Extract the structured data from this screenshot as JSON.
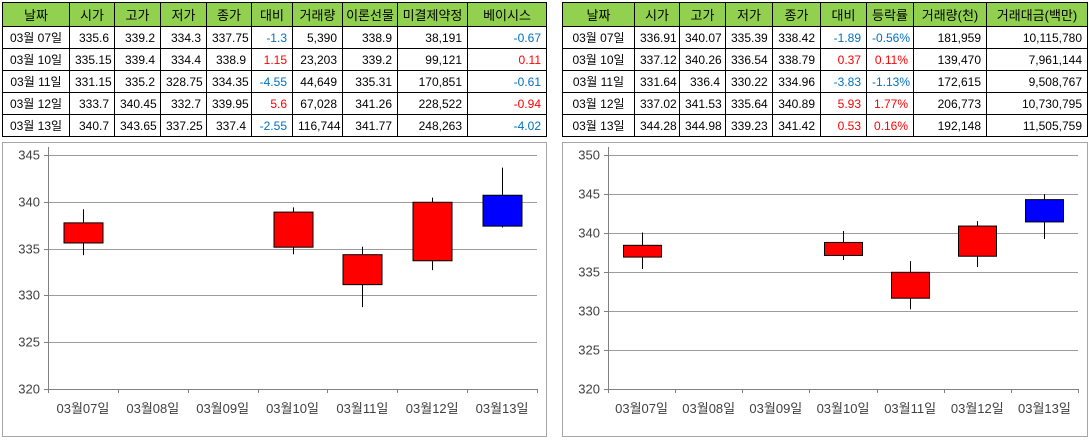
{
  "colors": {
    "header_bg": "#92D050",
    "up": "#FF0000",
    "down": "#0000FF",
    "up_text": "#FF0000",
    "down_text": "#0070C0",
    "grid": "#9C9C9C",
    "axis": "#808080",
    "chart_border": "#A6A6A6",
    "chart_label": "#404040",
    "table_border": "#000000"
  },
  "tables": [
    {
      "name": "futures-daily-table",
      "headers": [
        "날짜",
        "시가",
        "고가",
        "저가",
        "종가",
        "대비",
        "거래량",
        "이론선물",
        "미결제약정",
        "베이시스"
      ],
      "rows": [
        {
          "cells": [
            "03월 07일",
            "335.6",
            "339.2",
            "334.3",
            "337.75",
            "-1.3",
            "5,390",
            "338.9",
            "38,191",
            "-0.67"
          ],
          "colors": {
            "5": "down",
            "9": "down"
          }
        },
        {
          "cells": [
            "03월 10일",
            "335.15",
            "339.4",
            "334.4",
            "338.9",
            "1.15",
            "23,203",
            "339.2",
            "99,121",
            "0.11"
          ],
          "colors": {
            "5": "up",
            "9": "up"
          }
        },
        {
          "cells": [
            "03월 11일",
            "331.15",
            "335.2",
            "328.75",
            "334.35",
            "-4.55",
            "44,649",
            "335.31",
            "170,851",
            "-0.61"
          ],
          "colors": {
            "5": "down",
            "9": "down"
          }
        },
        {
          "cells": [
            "03월 12일",
            "333.7",
            "340.45",
            "332.7",
            "339.95",
            "5.6",
            "67,028",
            "341.26",
            "228,522",
            "-0.94"
          ],
          "colors": {
            "5": "up",
            "9": "up"
          }
        },
        {
          "cells": [
            "03월 13일",
            "340.7",
            "343.65",
            "337.25",
            "337.4",
            "-2.55",
            "116,744",
            "341.77",
            "248,263",
            "-4.02"
          ],
          "colors": {
            "5": "down",
            "9": "down"
          }
        }
      ]
    },
    {
      "name": "spot-daily-table",
      "headers": [
        "날짜",
        "시가",
        "고가",
        "저가",
        "종가",
        "대비",
        "등락률",
        "거래량(천)",
        "거래대금(백만)"
      ],
      "rows": [
        {
          "cells": [
            "03월 07일",
            "336.91",
            "340.07",
            "335.39",
            "338.42",
            "-1.89",
            "-0.56%",
            "181,959",
            "10,115,780"
          ],
          "colors": {
            "5": "down",
            "6": "down"
          }
        },
        {
          "cells": [
            "03월 10일",
            "337.12",
            "340.26",
            "336.54",
            "338.79",
            "0.37",
            "0.11%",
            "139,470",
            "7,961,144"
          ],
          "colors": {
            "5": "up",
            "6": "up"
          }
        },
        {
          "cells": [
            "03월 11일",
            "331.64",
            "336.4",
            "330.22",
            "334.96",
            "-3.83",
            "-1.13%",
            "172,615",
            "9,508,767"
          ],
          "colors": {
            "5": "down",
            "6": "down"
          }
        },
        {
          "cells": [
            "03월 12일",
            "337.02",
            "341.53",
            "335.64",
            "340.89",
            "5.93",
            "1.77%",
            "206,773",
            "10,730,795"
          ],
          "colors": {
            "5": "up",
            "6": "up"
          }
        },
        {
          "cells": [
            "03월 13일",
            "344.28",
            "344.98",
            "339.23",
            "341.42",
            "0.53",
            "0.16%",
            "192,148",
            "11,505,759"
          ],
          "colors": {
            "5": "up",
            "6": "up"
          }
        }
      ]
    }
  ],
  "chart_data": [
    {
      "type": "candlestick",
      "name": "futures-daily-candlestick",
      "title": "",
      "categories": [
        "03월07일",
        "03월08일",
        "03월09일",
        "03월10일",
        "03월11일",
        "03월12일",
        "03월13일"
      ],
      "ylim": [
        320,
        345
      ],
      "yticks": [
        320,
        325,
        330,
        335,
        340,
        345
      ],
      "grid": true,
      "legend": false,
      "up_color": "#FF0000",
      "down_color": "#0000FF",
      "candles": [
        {
          "x": 0,
          "date": "03월07일",
          "open": 335.6,
          "high": 339.2,
          "low": 334.3,
          "close": 337.75,
          "direction": "up"
        },
        {
          "x": 3,
          "date": "03월10일",
          "open": 335.15,
          "high": 339.4,
          "low": 334.4,
          "close": 338.9,
          "direction": "up"
        },
        {
          "x": 4,
          "date": "03월11일",
          "open": 331.15,
          "high": 335.2,
          "low": 328.75,
          "close": 334.35,
          "direction": "up"
        },
        {
          "x": 5,
          "date": "03월12일",
          "open": 333.7,
          "high": 340.45,
          "low": 332.7,
          "close": 339.95,
          "direction": "up"
        },
        {
          "x": 6,
          "date": "03월13일",
          "open": 340.7,
          "high": 343.65,
          "low": 337.25,
          "close": 337.4,
          "direction": "down"
        }
      ]
    },
    {
      "type": "candlestick",
      "name": "spot-daily-candlestick",
      "title": "",
      "categories": [
        "03월07일",
        "03월08일",
        "03월09일",
        "03월10일",
        "03월11일",
        "03월12일",
        "03월13일"
      ],
      "ylim": [
        320,
        350
      ],
      "yticks": [
        320,
        325,
        330,
        335,
        340,
        345,
        350
      ],
      "grid": true,
      "legend": false,
      "up_color": "#FF0000",
      "down_color": "#0000FF",
      "candles": [
        {
          "x": 0,
          "date": "03월07일",
          "open": 336.91,
          "high": 340.07,
          "low": 335.39,
          "close": 338.42,
          "direction": "up"
        },
        {
          "x": 3,
          "date": "03월10일",
          "open": 337.12,
          "high": 340.26,
          "low": 336.54,
          "close": 338.79,
          "direction": "up"
        },
        {
          "x": 4,
          "date": "03월11일",
          "open": 331.64,
          "high": 336.4,
          "low": 330.22,
          "close": 334.96,
          "direction": "up"
        },
        {
          "x": 5,
          "date": "03월12일",
          "open": 337.02,
          "high": 341.53,
          "low": 335.64,
          "close": 340.89,
          "direction": "up"
        },
        {
          "x": 6,
          "date": "03월13일",
          "open": 344.28,
          "high": 344.98,
          "low": 339.23,
          "close": 341.42,
          "direction": "down"
        }
      ]
    }
  ]
}
